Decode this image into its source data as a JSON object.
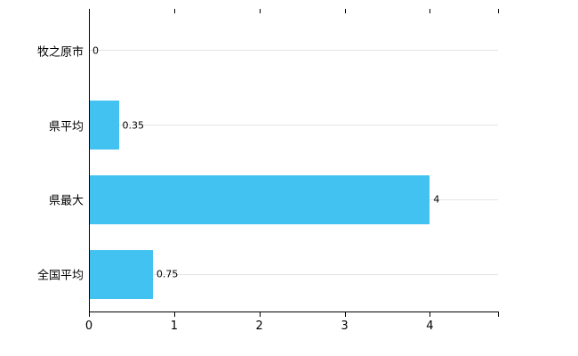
{
  "chart_data": {
    "type": "bar",
    "orientation": "horizontal",
    "title": "",
    "xlabel": "",
    "ylabel": "",
    "categories": [
      "牧之原市",
      "県平均",
      "県最大",
      "全国平均"
    ],
    "values": [
      0,
      0.35,
      4,
      0.75
    ],
    "value_labels": [
      "0",
      "0.35",
      "4",
      "0.75"
    ],
    "x_ticks": [
      0,
      1,
      2,
      3,
      4
    ],
    "x_tick_labels": [
      "0",
      "1",
      "2",
      "3",
      "4"
    ],
    "xlim": [
      0,
      4.8
    ],
    "grid": true,
    "legend": "none",
    "bar_color": "#41c2f0",
    "gridline_color": "#e5e5e5",
    "axis_color": "#000000"
  }
}
